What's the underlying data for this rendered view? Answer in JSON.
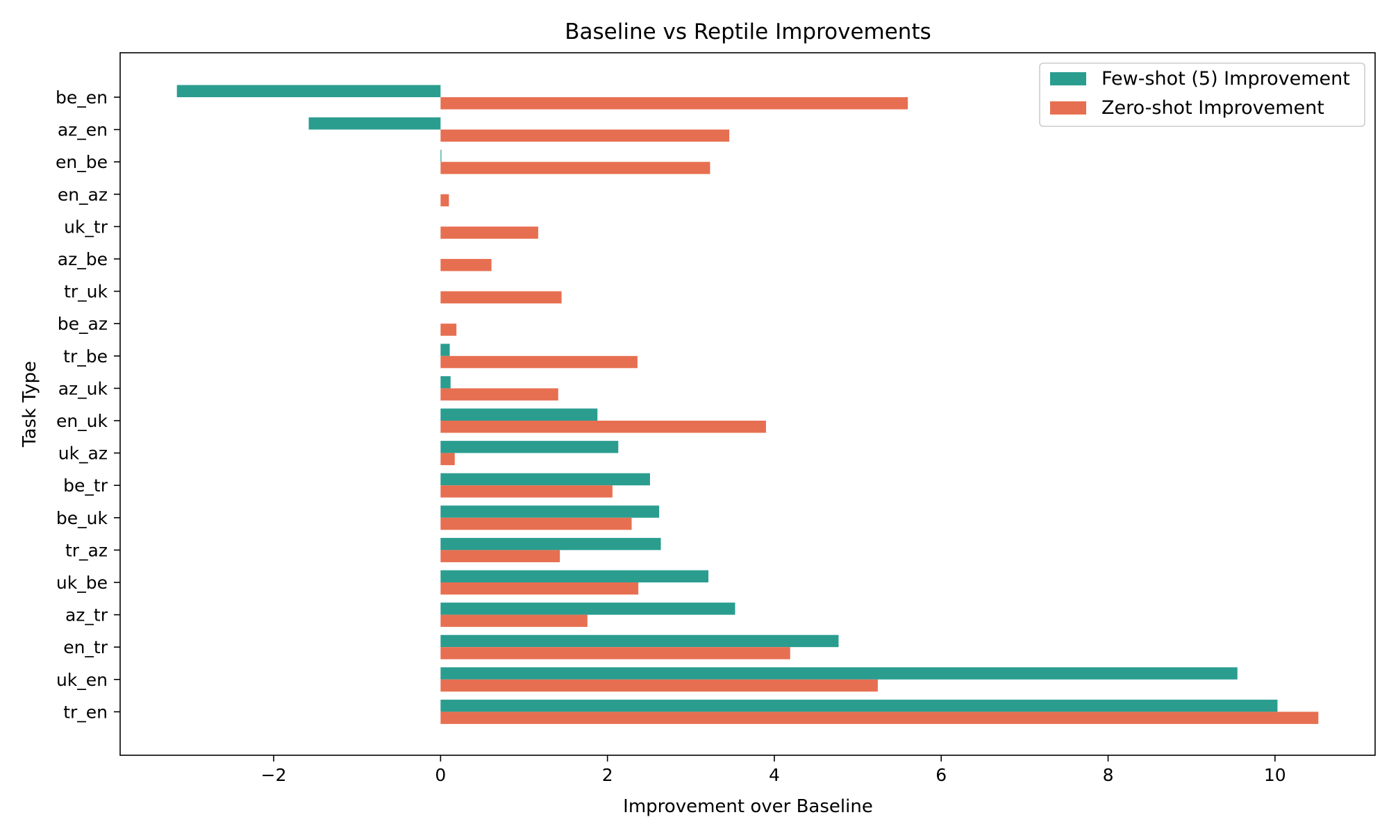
{
  "chart_data": {
    "type": "bar",
    "orientation": "horizontal",
    "title": "Baseline vs Reptile Improvements",
    "xlabel": "Improvement over Baseline",
    "ylabel": "Task Type",
    "categories": [
      "be_en",
      "az_en",
      "en_be",
      "en_az",
      "uk_tr",
      "az_be",
      "tr_uk",
      "be_az",
      "tr_be",
      "az_uk",
      "en_uk",
      "uk_az",
      "be_tr",
      "be_uk",
      "tr_az",
      "uk_be",
      "az_tr",
      "en_tr",
      "uk_en",
      "tr_en"
    ],
    "series": [
      {
        "name": "Few-shot (5) Improvement",
        "color": "#2a9d8f",
        "values": [
          -3.16,
          -1.58,
          0.01,
          0.0,
          0.0,
          0.0,
          0.0,
          0.0,
          0.11,
          0.12,
          1.88,
          2.13,
          2.51,
          2.62,
          2.64,
          3.21,
          3.53,
          4.77,
          9.55,
          10.03
        ]
      },
      {
        "name": "Zero-shot Improvement",
        "color": "#e76f51",
        "values": [
          5.6,
          3.46,
          3.23,
          0.1,
          1.17,
          0.61,
          1.45,
          0.19,
          2.36,
          1.41,
          3.9,
          0.17,
          2.06,
          2.29,
          1.43,
          2.37,
          1.76,
          4.19,
          5.24,
          10.52
        ]
      }
    ],
    "xlim": [
      -3.84,
      11.2
    ],
    "xticks": [
      -2,
      0,
      2,
      4,
      6,
      8,
      10
    ],
    "xtick_labels": [
      "−2",
      "0",
      "2",
      "4",
      "6",
      "8",
      "10"
    ],
    "grid": false,
    "legend_position": "upper right"
  }
}
